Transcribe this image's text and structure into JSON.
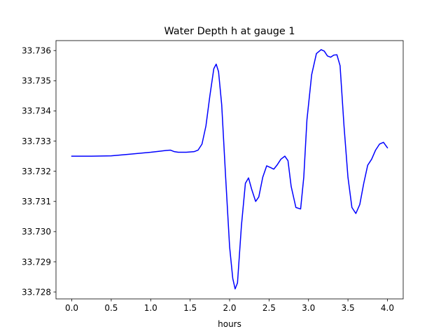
{
  "chart_data": {
    "type": "line",
    "title": "Water Depth h at gauge 1",
    "xlabel": "hours",
    "ylabel": "",
    "xlim": [
      -0.2,
      4.2
    ],
    "ylim": [
      33.72777,
      33.73633
    ],
    "grid": false,
    "legend": "none",
    "xticks": [
      0.0,
      0.5,
      1.0,
      1.5,
      2.0,
      2.5,
      3.0,
      3.5,
      4.0
    ],
    "xtick_labels": [
      "0.0",
      "0.5",
      "1.0",
      "1.5",
      "2.0",
      "2.5",
      "3.0",
      "3.5",
      "4.0"
    ],
    "yticks": [
      33.728,
      33.729,
      33.73,
      33.731,
      33.732,
      33.733,
      33.734,
      33.735,
      33.736
    ],
    "ytick_labels": [
      "33.728",
      "33.729",
      "33.730",
      "33.731",
      "33.732",
      "33.733",
      "33.734",
      "33.735",
      "33.736"
    ],
    "series": [
      {
        "color": "#0000ff",
        "x": [
          0.0,
          0.25,
          0.5,
          0.75,
          1.0,
          1.1,
          1.2,
          1.25,
          1.3,
          1.35,
          1.45,
          1.55,
          1.6,
          1.65,
          1.7,
          1.75,
          1.8,
          1.83,
          1.86,
          1.9,
          1.95,
          2.0,
          2.04,
          2.07,
          2.1,
          2.15,
          2.2,
          2.24,
          2.28,
          2.33,
          2.37,
          2.42,
          2.47,
          2.52,
          2.56,
          2.6,
          2.65,
          2.7,
          2.74,
          2.78,
          2.84,
          2.9,
          2.94,
          2.98,
          3.04,
          3.1,
          3.16,
          3.2,
          3.24,
          3.28,
          3.32,
          3.36,
          3.4,
          3.45,
          3.5,
          3.55,
          3.6,
          3.65,
          3.7,
          3.75,
          3.8,
          3.85,
          3.9,
          3.95,
          4.0
        ],
        "y": [
          33.7325,
          33.7325,
          33.73251,
          33.73257,
          33.73263,
          33.73266,
          33.73269,
          33.7327,
          33.73265,
          33.73263,
          33.73263,
          33.73265,
          33.7327,
          33.7329,
          33.7335,
          33.7345,
          33.7354,
          33.73555,
          33.7353,
          33.7342,
          33.7318,
          33.7295,
          33.72845,
          33.7281,
          33.7283,
          33.7302,
          33.7316,
          33.73178,
          33.7314,
          33.731,
          33.73115,
          33.7318,
          33.73218,
          33.73212,
          33.73207,
          33.7322,
          33.7324,
          33.7325,
          33.73235,
          33.7315,
          33.7308,
          33.73075,
          33.7318,
          33.7337,
          33.7352,
          33.7359,
          33.73603,
          33.73598,
          33.73582,
          33.73578,
          33.73585,
          33.73586,
          33.7355,
          33.7335,
          33.7318,
          33.7308,
          33.7306,
          33.7309,
          33.7316,
          33.7322,
          33.7324,
          33.7327,
          33.7329,
          33.73296,
          33.73278
        ]
      }
    ]
  }
}
